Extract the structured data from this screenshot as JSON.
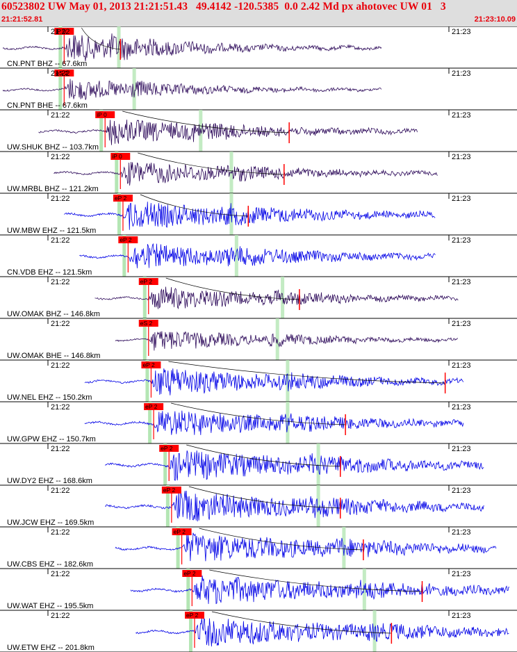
{
  "header": {
    "title": "60523802 UW May 01, 2013 21:21:51.43   49.4142 -120.5385  0.0 2.42 Md px ahotovec UW 01   3",
    "time_start": "21:21:52.81",
    "time_end": "21:23:10.09"
  },
  "colors": {
    "header_red": "#e8000b",
    "header_bg": "#dedede",
    "blue_trace": "#0000e6",
    "dark_trace": "#2d0a5a",
    "pick_box": "#ff0000",
    "window_green": "#b4e6b4"
  },
  "chart_data": {
    "type": "seismogram",
    "time_range": [
      "21:21:52.81",
      "21:23:10.09"
    ],
    "minute_ticks": [
      "21:22",
      "21:23"
    ],
    "traces": [
      {
        "label": "CN.PNT BHZ -- 67.6km",
        "minute_label": "21:22",
        "pick": "iP 0",
        "tick_label": "21:23",
        "color": "dark",
        "p": 0.12,
        "s": 0.21,
        "s_tx": 0.23,
        "start": 0.0,
        "end": 0.74,
        "amp": 0.7,
        "coda": 2.5
      },
      {
        "label": "CN.PNT BHE -- 67.6km",
        "minute_label": "21:22",
        "pick": "eS 2",
        "tick_label": "21:23",
        "color": "dark",
        "p": 0.12,
        "s": 0.24,
        "start": 0.0,
        "end": 0.74,
        "amp": 0.55,
        "coda": 2.5
      },
      {
        "label": "UW.SHUK BHZ -- 103.7km",
        "minute_label": "21:22",
        "pick": "iP 0",
        "tick_label": "21:23",
        "color": "dark",
        "p": 0.2,
        "s": 0.37,
        "s_tx": 0.56,
        "start": 0.07,
        "end": 0.81,
        "amp": 0.65,
        "coda": 3.0
      },
      {
        "label": "UW.MRBL BHZ -- 121.2km",
        "minute_label": "21:22",
        "pick": "iP 0",
        "tick_label": "21:23",
        "color": "dark",
        "p": 0.23,
        "s": 0.43,
        "s_tx": 0.55,
        "start": 0.1,
        "end": 0.85,
        "amp": 0.6,
        "coda": 3.0
      },
      {
        "label": "UW.MBW EHZ -- 121.5km",
        "minute_label": "21:22",
        "pick": "eP 2",
        "tick_label": "21:23",
        "color": "blue",
        "p": 0.235,
        "s": 0.43,
        "s_tx": 0.48,
        "start": 0.12,
        "end": 0.845,
        "amp": 0.7,
        "coda": 3.5
      },
      {
        "label": "CN.VDB EHZ -- 121.5km",
        "minute_label": "21:22",
        "pick": "eP 2",
        "tick_label": "21:23",
        "color": "blue",
        "p": 0.245,
        "s": 0.44,
        "start": 0.15,
        "end": 0.845,
        "amp": 0.65,
        "coda": 3.5
      },
      {
        "label": "UW.OMAK BHZ -- 146.8km",
        "minute_label": "21:22",
        "pick": "eP 2",
        "tick_label": "21:23",
        "color": "dark",
        "p": 0.285,
        "s": 0.53,
        "s_tx": 0.58,
        "start": 0.18,
        "end": 0.89,
        "amp": 0.6,
        "coda": 3.0
      },
      {
        "label": "UW.OMAK BHE -- 146.8km",
        "minute_label": "21:22",
        "pick": "eS 2",
        "tick_label": "21:23",
        "color": "dark",
        "p": 0.285,
        "s": 0.52,
        "start": 0.22,
        "end": 0.89,
        "amp": 0.55,
        "coda": 2.5
      },
      {
        "label": "UW.NEL EHZ -- 150.2km",
        "minute_label": "21:22",
        "pick": "eP 2",
        "tick_label": "21:23",
        "color": "blue",
        "p": 0.29,
        "s": 0.54,
        "s_tx": 0.865,
        "start": 0.16,
        "end": 0.9,
        "amp": 0.75,
        "coda": 3.0
      },
      {
        "label": "UW.GPW EHZ -- 150.7km",
        "minute_label": "21:22",
        "pick": "eP 2",
        "tick_label": "21:23",
        "color": "blue",
        "p": 0.295,
        "s": 0.54,
        "s_tx": 0.67,
        "start": 0.16,
        "end": 0.9,
        "amp": 0.7,
        "coda": 3.5
      },
      {
        "label": "UW.DY2 EHZ -- 168.6km",
        "minute_label": "21:22",
        "pick": "eP 2",
        "tick_label": "21:23",
        "color": "blue",
        "p": 0.325,
        "s": 0.6,
        "s_tx": 0.66,
        "start": 0.2,
        "end": 0.94,
        "amp": 0.75,
        "coda": 4.0
      },
      {
        "label": "UW.JCW EHZ -- 169.5km",
        "minute_label": "21:22",
        "pick": "eP 2",
        "tick_label": "21:23",
        "color": "blue",
        "p": 0.33,
        "s": 0.6,
        "s_tx": 0.66,
        "start": 0.2,
        "end": 0.94,
        "amp": 0.75,
        "coda": 4.0
      },
      {
        "label": "UW.CBS EHZ -- 182.6km",
        "minute_label": "21:22",
        "pick": "eP 2",
        "tick_label": "21:23",
        "color": "blue",
        "p": 0.35,
        "s": 0.65,
        "s_tx": 0.705,
        "start": 0.22,
        "end": 0.965,
        "amp": 0.75,
        "coda": 4.0
      },
      {
        "label": "UW.WAT EHZ -- 195.5km",
        "minute_label": "21:22",
        "pick": "eP 2",
        "tick_label": "21:23",
        "color": "blue",
        "p": 0.37,
        "s": 0.69,
        "s_tx": 0.82,
        "start": 0.25,
        "end": 0.99,
        "amp": 0.7,
        "coda": 4.5
      },
      {
        "label": "UW.ETW EHZ -- 201.8km",
        "minute_label": "21:22",
        "pick": "eP 2",
        "tick_label": "21:23",
        "color": "blue",
        "p": 0.375,
        "s": 0.71,
        "s_tx": 0.76,
        "start": 0.26,
        "end": 0.99,
        "amp": 0.7,
        "coda": 4.5
      }
    ]
  }
}
